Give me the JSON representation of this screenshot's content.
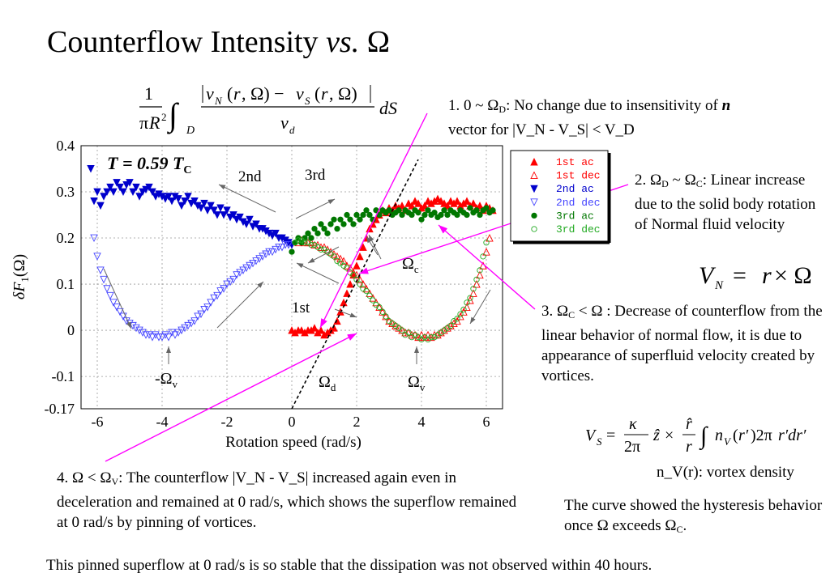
{
  "page": {
    "title_main": "Counterflow Intensity",
    "title_vs": "vs.",
    "title_omega": "Ω",
    "annotation1_lead": "1. 0 ~ Ω",
    "annotation1_sub": "D",
    "annotation1_rest": ": No change due to insensitivity of",
    "annotation1_n": "n",
    "annotation1_tail": "vector for |V_N - V_S| < V_D",
    "annotation2_lead": "2. Ω",
    "annotation2_sub1": "D",
    "annotation2_mid": "~ Ω",
    "annotation2_sub2": "C",
    "annotation2_rest": ": Linear increase due to the solid body rotation of Normal fluid velocity",
    "annotation3_lead": "3. Ω",
    "annotation3_sub": "C",
    "annotation3_rest": "< Ω : Decrease of counterflow from the linear behavior of normal flow, it is due to appearance of superfluid velocity created by vortices.",
    "annotation4_lead": "4. Ω < Ω",
    "annotation4_sub": "V",
    "annotation4_rest": ": The counterflow |V_N - V_S| increased again even in deceleration and remained at 0 rad/s, which shows the superflow remained at 0 rad/s by pinning of vortices.",
    "vortex_density_label": "n_V(r): vortex density",
    "hysteresis_text_lead": "The curve showed the hysteresis behavior once Ω exceeds Ω",
    "hysteresis_text_sub": "C",
    "hysteresis_text_tail": ".",
    "footer": "This pinned superflow at 0 rad/s is so stable that the dissipation was not observed within 40 hours.",
    "formula_integral": "(1/πR²) ∫_D |v_N(r,Ω) − v_S(r,Ω)| / v_d dS",
    "formula_vn": "V_N = r × Ω",
    "formula_vs": "V_S = (κ/2π) ẑ × (r̂/r) ∫ n_V(r′) 2πr′dr′"
  },
  "chart_data": {
    "type": "scatter",
    "xlabel": "Rotation speed (rad/s)",
    "ylabel": "δF₁(Ω)",
    "xlim": [
      -6.5,
      6.5
    ],
    "ylim": [
      -0.17,
      0.4
    ],
    "x_ticks": [
      -6,
      -4,
      -2,
      0,
      2,
      4,
      6
    ],
    "y_ticks": [
      -0.17,
      -0.1,
      0,
      0.1,
      0.2,
      0.3,
      0.4
    ],
    "y_tick_labels": [
      "-0.17",
      "-0.1",
      "0",
      "0.1",
      "0.2",
      "0.3",
      "0.4"
    ],
    "grid": true,
    "legend_position": "top-right",
    "temperature_label": "T = 0.59 T",
    "temperature_sub": "C",
    "text_labels": {
      "second": "2nd",
      "third": "3rd",
      "first": "1st",
      "omega_c": "Ω",
      "omega_c_sub": "c",
      "omega_d": "Ω",
      "omega_d_sub": "d",
      "omega_v": "Ω",
      "omega_v_sub": "v",
      "neg_omega_v": "-Ω",
      "neg_omega_v_sub": "v"
    },
    "series": [
      {
        "name": "1st ac",
        "color": "#ff0000",
        "marker": "triangle-up-filled",
        "x": [
          0.0,
          0.1,
          0.2,
          0.3,
          0.4,
          0.5,
          0.6,
          0.7,
          0.8,
          0.9,
          1.0,
          1.1,
          1.2,
          1.3,
          1.4,
          1.5,
          1.6,
          1.7,
          1.8,
          1.9,
          2.0,
          2.1,
          2.2,
          2.3,
          2.4,
          2.5,
          2.6,
          2.7,
          2.8,
          2.9,
          3.0,
          3.1,
          3.2,
          3.3,
          3.4,
          3.5,
          3.6,
          3.7,
          3.8,
          3.9,
          4.0,
          4.1,
          4.2,
          4.3,
          4.4,
          4.5,
          4.6,
          4.7,
          4.8,
          4.9,
          5.0,
          5.1,
          5.2,
          5.3,
          5.4,
          5.5,
          5.6,
          5.7,
          5.8,
          5.9,
          6.0,
          6.1,
          6.2
        ],
        "y": [
          0.0,
          -0.005,
          0.0,
          0.0,
          -0.005,
          0.0,
          0.0,
          0.005,
          -0.005,
          0.0,
          -0.01,
          -0.005,
          0.0,
          0.005,
          0.02,
          0.04,
          0.06,
          0.08,
          0.1,
          0.12,
          0.14,
          0.16,
          0.18,
          0.2,
          0.22,
          0.23,
          0.24,
          0.25,
          0.26,
          0.255,
          0.265,
          0.26,
          0.27,
          0.265,
          0.27,
          0.26,
          0.275,
          0.27,
          0.28,
          0.275,
          0.265,
          0.27,
          0.28,
          0.275,
          0.28,
          0.285,
          0.28,
          0.275,
          0.27,
          0.28,
          0.275,
          0.28,
          0.27,
          0.275,
          0.28,
          0.27,
          0.275,
          0.265,
          0.27,
          0.26,
          0.27,
          0.265,
          0.26
        ]
      },
      {
        "name": "1st dec",
        "color": "#ff0000",
        "marker": "triangle-up-open",
        "x": [
          6.1,
          6.0,
          5.9,
          5.8,
          5.7,
          5.6,
          5.5,
          5.4,
          5.3,
          5.2,
          5.1,
          5.0,
          4.9,
          4.8,
          4.7,
          4.6,
          4.5,
          4.4,
          4.3,
          4.2,
          4.1,
          4.0,
          3.9,
          3.8,
          3.7,
          3.6,
          3.5,
          3.4,
          3.3,
          3.2,
          3.1,
          3.0,
          2.9,
          2.8,
          2.7,
          2.6,
          2.5,
          2.4,
          2.3,
          2.2,
          2.1,
          2.0,
          1.9,
          1.8,
          1.7,
          1.6,
          1.5,
          1.4,
          1.3,
          1.2,
          1.1,
          1.0,
          0.9,
          0.8,
          0.7,
          0.6,
          0.5,
          0.4,
          0.3,
          0.2
        ],
        "y": [
          0.2,
          0.17,
          0.14,
          0.12,
          0.1,
          0.08,
          0.065,
          0.05,
          0.04,
          0.03,
          0.02,
          0.015,
          0.01,
          0.005,
          0.0,
          -0.005,
          -0.01,
          -0.01,
          -0.015,
          -0.01,
          -0.015,
          -0.01,
          -0.015,
          -0.01,
          -0.01,
          -0.005,
          -0.005,
          0.0,
          0.005,
          0.01,
          0.015,
          0.02,
          0.03,
          0.04,
          0.05,
          0.06,
          0.07,
          0.08,
          0.09,
          0.1,
          0.11,
          0.12,
          0.125,
          0.135,
          0.14,
          0.15,
          0.155,
          0.16,
          0.165,
          0.17,
          0.175,
          0.18,
          0.18,
          0.185,
          0.185,
          0.19,
          0.19,
          0.19,
          0.195,
          0.19
        ]
      },
      {
        "name": "2nd ac",
        "color": "#0000cc",
        "marker": "triangle-down-filled",
        "x": [
          -6.2,
          -6.1,
          -6.0,
          -5.9,
          -5.8,
          -5.7,
          -5.6,
          -5.5,
          -5.4,
          -5.3,
          -5.2,
          -5.1,
          -5.0,
          -4.9,
          -4.8,
          -4.7,
          -4.6,
          -4.5,
          -4.4,
          -4.3,
          -4.2,
          -4.1,
          -4.0,
          -3.9,
          -3.8,
          -3.7,
          -3.6,
          -3.5,
          -3.4,
          -3.3,
          -3.2,
          -3.1,
          -3.0,
          -2.9,
          -2.8,
          -2.7,
          -2.6,
          -2.5,
          -2.4,
          -2.3,
          -2.2,
          -2.1,
          -2.0,
          -1.9,
          -1.8,
          -1.7,
          -1.6,
          -1.5,
          -1.4,
          -1.3,
          -1.2,
          -1.1,
          -1.0,
          -0.9,
          -0.8,
          -0.7,
          -0.6,
          -0.5,
          -0.4,
          -0.3,
          -0.2,
          -0.1,
          0.0
        ],
        "y": [
          0.35,
          0.28,
          0.3,
          0.27,
          0.29,
          0.3,
          0.31,
          0.3,
          0.32,
          0.31,
          0.3,
          0.315,
          0.32,
          0.3,
          0.31,
          0.29,
          0.3,
          0.305,
          0.31,
          0.3,
          0.29,
          0.295,
          0.29,
          0.285,
          0.29,
          0.28,
          0.29,
          0.285,
          0.27,
          0.28,
          0.29,
          0.275,
          0.28,
          0.27,
          0.265,
          0.275,
          0.26,
          0.27,
          0.26,
          0.25,
          0.265,
          0.25,
          0.26,
          0.245,
          0.25,
          0.24,
          0.245,
          0.235,
          0.23,
          0.24,
          0.225,
          0.23,
          0.22,
          0.22,
          0.215,
          0.21,
          0.205,
          0.21,
          0.2,
          0.2,
          0.195,
          0.19,
          0.185
        ]
      },
      {
        "name": "2nd dec",
        "color": "#4444ff",
        "marker": "triangle-down-open",
        "x": [
          -6.1,
          -6.0,
          -5.9,
          -5.8,
          -5.7,
          -5.6,
          -5.5,
          -5.4,
          -5.3,
          -5.2,
          -5.1,
          -5.0,
          -4.9,
          -4.8,
          -4.7,
          -4.6,
          -4.5,
          -4.4,
          -4.3,
          -4.2,
          -4.1,
          -4.0,
          -3.9,
          -3.8,
          -3.7,
          -3.6,
          -3.5,
          -3.4,
          -3.3,
          -3.2,
          -3.1,
          -3.0,
          -2.9,
          -2.8,
          -2.7,
          -2.6,
          -2.5,
          -2.4,
          -2.3,
          -2.2,
          -2.1,
          -2.0,
          -1.9,
          -1.8,
          -1.7,
          -1.6,
          -1.5,
          -1.4,
          -1.3,
          -1.2,
          -1.1,
          -1.0,
          -0.9,
          -0.8,
          -0.7,
          -0.6,
          -0.5,
          -0.4,
          -0.3,
          -0.2,
          -0.1
        ],
        "y": [
          0.2,
          0.16,
          0.13,
          0.11,
          0.09,
          0.075,
          0.06,
          0.05,
          0.04,
          0.03,
          0.02,
          0.015,
          0.01,
          0.005,
          0.0,
          -0.005,
          -0.01,
          -0.01,
          -0.015,
          -0.01,
          -0.015,
          -0.015,
          -0.01,
          -0.015,
          -0.005,
          -0.01,
          -0.005,
          0.0,
          0.005,
          0.01,
          0.015,
          0.02,
          0.03,
          0.035,
          0.045,
          0.05,
          0.06,
          0.07,
          0.075,
          0.085,
          0.09,
          0.1,
          0.105,
          0.11,
          0.12,
          0.125,
          0.13,
          0.135,
          0.14,
          0.145,
          0.15,
          0.155,
          0.16,
          0.165,
          0.17,
          0.17,
          0.175,
          0.18,
          0.18,
          0.185,
          0.185
        ]
      },
      {
        "name": "3rd ac",
        "color": "#007700",
        "marker": "circle-filled",
        "x": [
          0.0,
          0.1,
          0.2,
          0.3,
          0.4,
          0.5,
          0.6,
          0.7,
          0.8,
          0.9,
          1.0,
          1.1,
          1.2,
          1.3,
          1.4,
          1.5,
          1.6,
          1.7,
          1.8,
          1.9,
          2.0,
          2.1,
          2.2,
          2.3,
          2.4,
          2.5,
          2.6,
          2.7,
          2.8,
          2.9,
          3.0,
          3.1,
          3.2,
          3.3,
          3.4,
          3.5,
          3.6,
          3.7,
          3.8,
          3.9,
          4.0,
          4.1,
          4.2,
          4.3,
          4.4,
          4.5,
          4.6,
          4.7,
          4.8,
          4.9,
          5.0,
          5.1,
          5.2,
          5.3,
          5.4,
          5.5,
          5.6,
          5.7,
          5.8,
          5.9,
          6.0,
          6.1,
          6.2
        ],
        "y": [
          0.17,
          0.19,
          0.2,
          0.19,
          0.2,
          0.21,
          0.2,
          0.22,
          0.21,
          0.23,
          0.22,
          0.21,
          0.23,
          0.24,
          0.22,
          0.24,
          0.23,
          0.25,
          0.24,
          0.23,
          0.25,
          0.24,
          0.25,
          0.26,
          0.25,
          0.24,
          0.26,
          0.25,
          0.26,
          0.255,
          0.26,
          0.25,
          0.255,
          0.26,
          0.25,
          0.26,
          0.255,
          0.25,
          0.26,
          0.255,
          0.24,
          0.25,
          0.26,
          0.25,
          0.255,
          0.245,
          0.25,
          0.26,
          0.25,
          0.26,
          0.255,
          0.25,
          0.26,
          0.255,
          0.25,
          0.265,
          0.255,
          0.26,
          0.25,
          0.26,
          0.265,
          0.255,
          0.26
        ]
      },
      {
        "name": "3rd dec",
        "color": "#22aa22",
        "marker": "circle-open",
        "x": [
          6.0,
          5.9,
          5.8,
          5.7,
          5.6,
          5.5,
          5.4,
          5.3,
          5.2,
          5.1,
          5.0,
          4.9,
          4.8,
          4.7,
          4.6,
          4.5,
          4.4,
          4.3,
          4.2,
          4.1,
          4.0,
          3.9,
          3.8,
          3.7,
          3.6,
          3.5,
          3.4,
          3.3,
          3.2,
          3.1,
          3.0,
          2.9,
          2.8,
          2.7,
          2.6,
          2.5,
          2.4,
          2.3,
          2.2,
          2.1,
          2.0,
          1.9,
          1.8,
          1.7,
          1.6,
          1.5,
          1.4,
          1.3,
          1.2,
          1.1,
          1.0,
          0.9,
          0.8,
          0.7,
          0.6,
          0.5,
          0.4,
          0.3,
          0.2,
          0.1
        ],
        "y": [
          0.19,
          0.16,
          0.13,
          0.11,
          0.09,
          0.07,
          0.06,
          0.045,
          0.035,
          0.025,
          0.02,
          0.01,
          0.005,
          0.0,
          -0.005,
          -0.01,
          -0.015,
          -0.015,
          -0.02,
          -0.015,
          -0.02,
          -0.015,
          -0.01,
          -0.015,
          -0.005,
          -0.01,
          0.0,
          0.005,
          0.01,
          0.015,
          0.02,
          0.03,
          0.04,
          0.05,
          0.055,
          0.065,
          0.075,
          0.085,
          0.09,
          0.1,
          0.11,
          0.12,
          0.125,
          0.135,
          0.14,
          0.145,
          0.15,
          0.16,
          0.165,
          0.17,
          0.175,
          0.175,
          0.18,
          0.185,
          0.185,
          0.19,
          0.19,
          0.195,
          0.195,
          0.19
        ]
      }
    ]
  }
}
